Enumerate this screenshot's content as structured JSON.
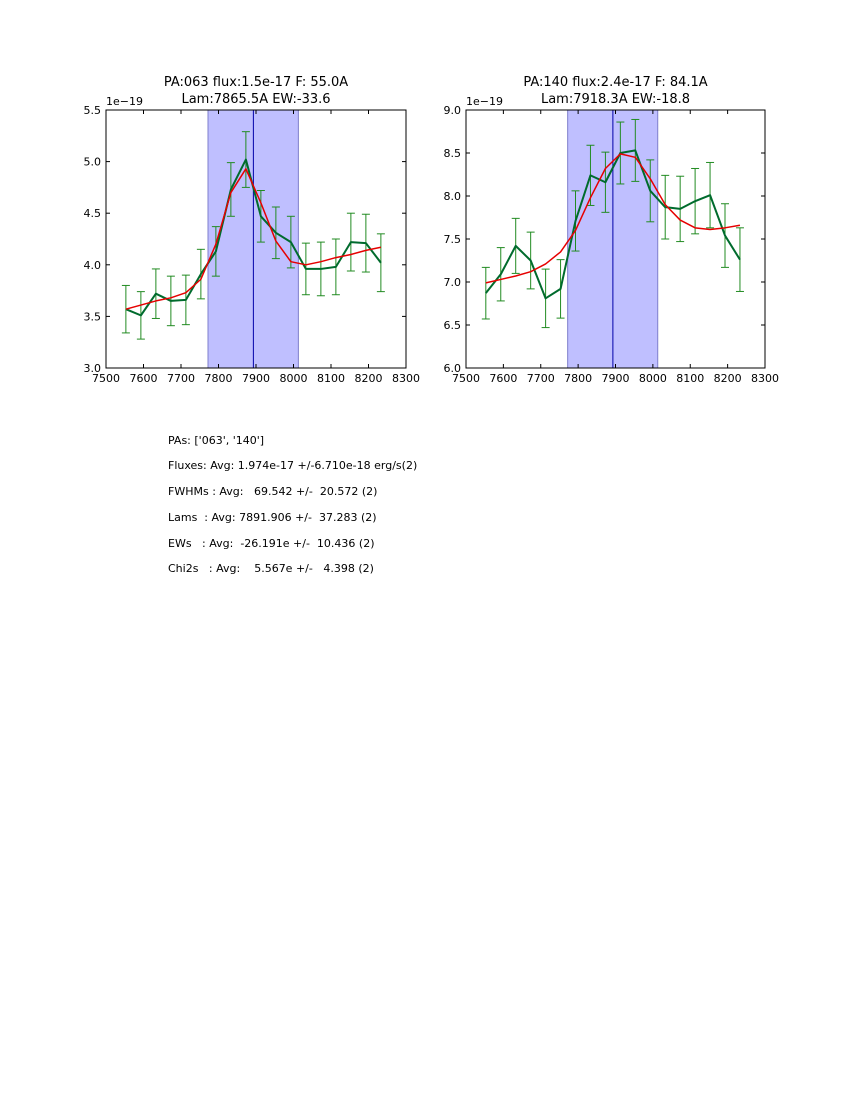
{
  "chart_data": [
    {
      "type": "line",
      "title_line1": "PA:063 flux:1.5e-17 F: 55.0A",
      "title_line2": "Lam:7865.5A EW:-33.6",
      "offset_text": "1e−19",
      "xlim": [
        7500,
        8300
      ],
      "ylim": [
        3.0,
        5.5
      ],
      "xticks": [
        7500,
        7600,
        7700,
        7800,
        7900,
        8000,
        8100,
        8200,
        8300
      ],
      "xtick_labels": [
        "7500",
        "7600",
        "7700",
        "7800",
        "7900",
        "8000",
        "8100",
        "8200",
        "8300"
      ],
      "yticks": [
        3.0,
        3.5,
        4.0,
        4.5,
        5.0,
        5.5
      ],
      "ytick_labels": [
        "3.0",
        "3.5",
        "4.0",
        "4.5",
        "5.0",
        "5.5"
      ],
      "band": [
        7772,
        8013
      ],
      "vline": 7893,
      "x": [
        7553,
        7593,
        7633,
        7673,
        7713,
        7753,
        7793,
        7833,
        7873,
        7913,
        7953,
        7993,
        8033,
        8073,
        8113,
        8153,
        8193,
        8233
      ],
      "series": [
        {
          "name": "data",
          "color": "#006b2d",
          "values": [
            3.57,
            3.51,
            3.72,
            3.65,
            3.66,
            3.91,
            4.13,
            4.73,
            5.02,
            4.47,
            4.31,
            4.22,
            3.96,
            3.96,
            3.98,
            4.22,
            4.21,
            4.02
          ],
          "errors": [
            0.23,
            0.23,
            0.24,
            0.24,
            0.24,
            0.24,
            0.24,
            0.26,
            0.27,
            0.25,
            0.25,
            0.25,
            0.25,
            0.26,
            0.27,
            0.28,
            0.28,
            0.28
          ]
        },
        {
          "name": "fit",
          "color": "#e60000",
          "values": [
            3.57,
            3.61,
            3.65,
            3.68,
            3.73,
            3.86,
            4.2,
            4.7,
            4.93,
            4.6,
            4.23,
            4.03,
            4.0,
            4.03,
            4.07,
            4.1,
            4.14,
            4.17
          ]
        }
      ]
    },
    {
      "type": "line",
      "title_line1": "PA:140 flux:2.4e-17 F: 84.1A",
      "title_line2": "Lam:7918.3A EW:-18.8",
      "offset_text": "1e−19",
      "xlim": [
        7500,
        8300
      ],
      "ylim": [
        6.0,
        9.0
      ],
      "xticks": [
        7500,
        7600,
        7700,
        7800,
        7900,
        8000,
        8100,
        8200,
        8300
      ],
      "xtick_labels": [
        "7500",
        "7600",
        "7700",
        "7800",
        "7900",
        "8000",
        "8100",
        "8200",
        "8300"
      ],
      "yticks": [
        6.0,
        6.5,
        7.0,
        7.5,
        8.0,
        8.5,
        9.0
      ],
      "ytick_labels": [
        "6.0",
        "6.5",
        "7.0",
        "7.5",
        "8.0",
        "8.5",
        "9.0"
      ],
      "band": [
        7772,
        8013
      ],
      "vline": 7893,
      "x": [
        7553,
        7593,
        7633,
        7673,
        7713,
        7753,
        7793,
        7833,
        7873,
        7913,
        7953,
        7993,
        8033,
        8073,
        8113,
        8153,
        8193,
        8233
      ],
      "series": [
        {
          "name": "data",
          "color": "#006b2d",
          "values": [
            6.87,
            7.09,
            7.42,
            7.25,
            6.81,
            6.92,
            7.71,
            8.24,
            8.16,
            8.5,
            8.53,
            8.06,
            7.87,
            7.85,
            7.94,
            8.01,
            7.54,
            7.26
          ],
          "errors": [
            0.3,
            0.31,
            0.32,
            0.33,
            0.34,
            0.34,
            0.35,
            0.35,
            0.35,
            0.36,
            0.36,
            0.36,
            0.37,
            0.38,
            0.38,
            0.38,
            0.37,
            0.37
          ]
        },
        {
          "name": "fit",
          "color": "#e60000",
          "values": [
            6.99,
            7.03,
            7.07,
            7.12,
            7.21,
            7.35,
            7.6,
            7.98,
            8.32,
            8.49,
            8.45,
            8.2,
            7.9,
            7.72,
            7.63,
            7.61,
            7.63,
            7.66
          ]
        }
      ]
    }
  ],
  "stats": {
    "pas": "PAs: ['063', '140']",
    "fluxes": "Fluxes: Avg: 1.974e-17 +/-6.710e-18 erg/s(2)",
    "fwhms": "FWHMs : Avg:   69.542 +/-  20.572 (2)",
    "lams": "Lams  : Avg: 7891.906 +/-  37.283 (2)",
    "ews": "EWs   : Avg:  -26.191e +/-  10.436 (2)",
    "chi2s": "Chi2s   : Avg:    5.567e +/-   4.398 (2)"
  },
  "colors": {
    "band_fill": "#bfbfff",
    "band_edge": "#7f7fcc",
    "vline": "#0000aa",
    "errorbar": "#228b22"
  }
}
